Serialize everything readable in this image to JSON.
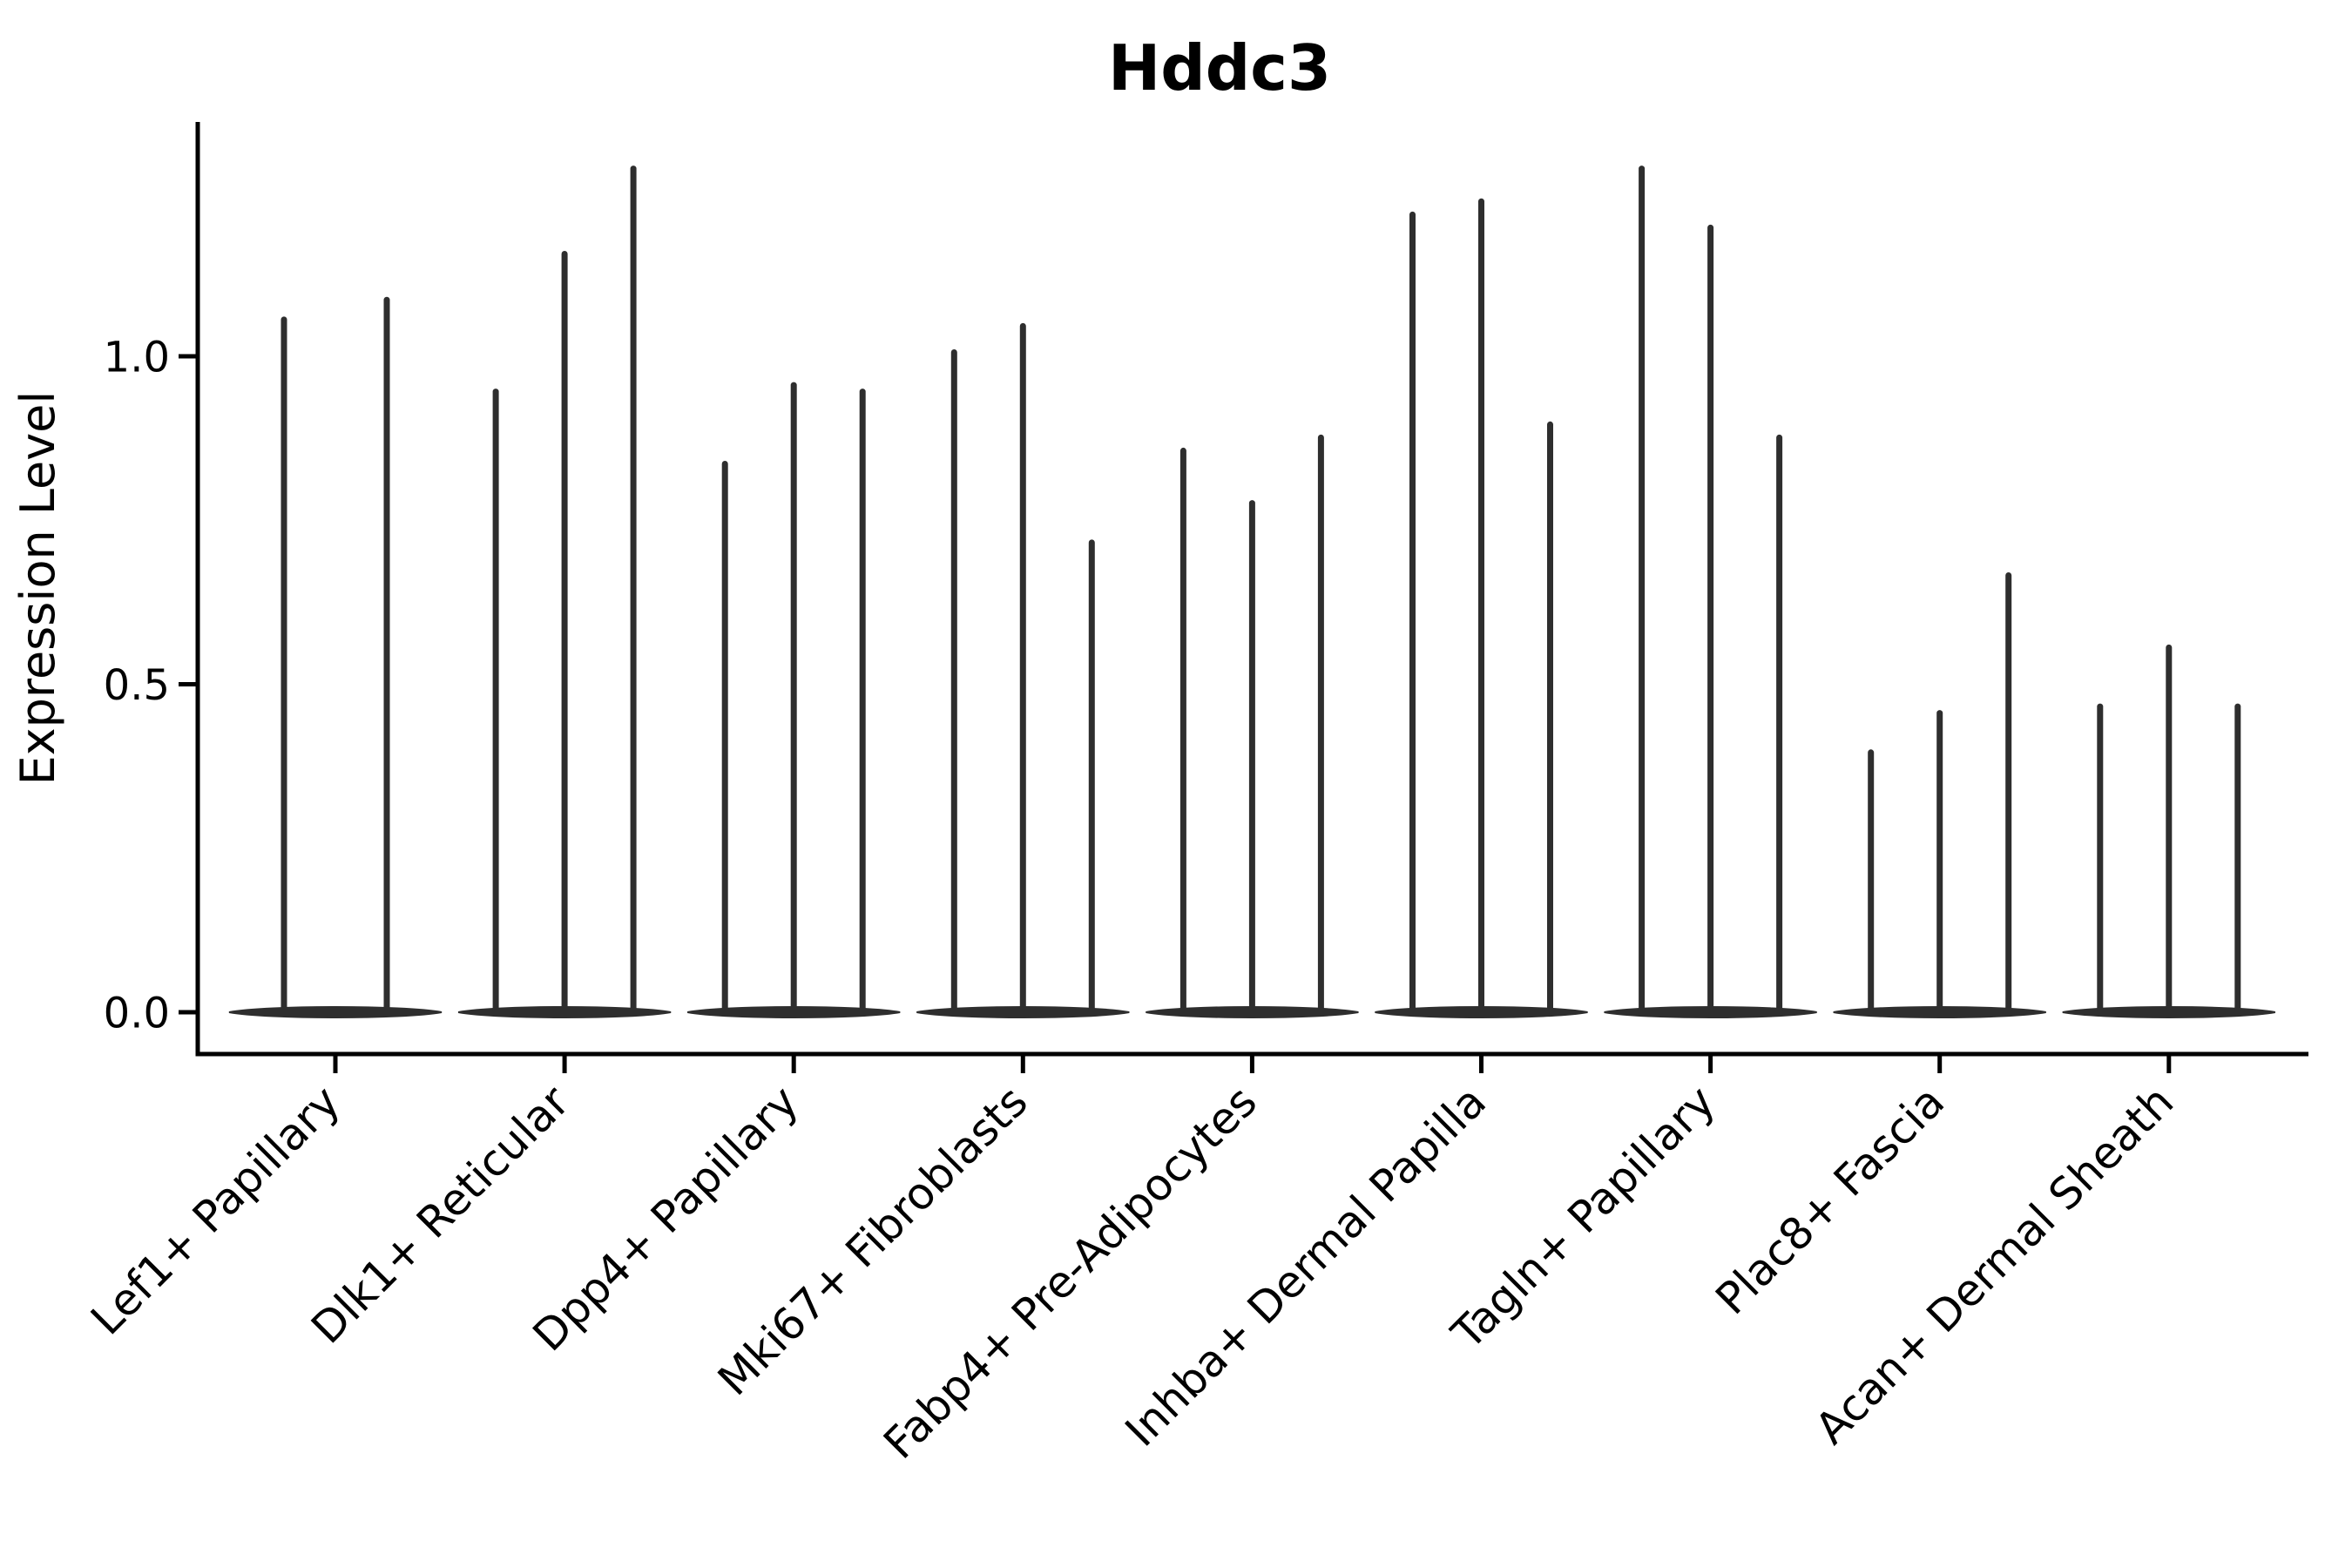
{
  "title": "Hddc3",
  "axes": {
    "ylabel": "Expression Level",
    "ytick_labels": [
      "0.0",
      "0.5",
      "1.0"
    ]
  },
  "colors": {
    "violin": "#2e2e2e",
    "axis": "#000000",
    "background": "#ffffff",
    "text": "#000000"
  },
  "chart_data": {
    "type": "violin",
    "title": "Hddc3",
    "xlabel": "",
    "ylabel": "Expression Level",
    "ylim": [
      -0.064,
      1.357
    ],
    "yticks": [
      0.0,
      0.5,
      1.0
    ],
    "ytick_labels": [
      "0.0",
      "0.5",
      "1.0"
    ],
    "grid": false,
    "legend": null,
    "x_tick_rotation_deg": 45,
    "categories": [
      "Lef1+ Papillary",
      "Dlk1+ Reticular",
      "Dpp4+ Papillary",
      "Mki67+ Fibroblasts",
      "Fabp4+ Pre-Adipocytes",
      "Inhba+ Dermal Papilla",
      "Tagln+ Papillary",
      "Plac8+ Fascia",
      "Acan+ Dermal Sheath"
    ],
    "series": [
      {
        "category": "Lef1+ Papillary",
        "violin_maxima": [
          1.06,
          1.09
        ]
      },
      {
        "category": "Dlk1+ Reticular",
        "violin_maxima": [
          0.95,
          1.16,
          1.29
        ]
      },
      {
        "category": "Dpp4+ Papillary",
        "violin_maxima": [
          0.84,
          0.96,
          0.95
        ]
      },
      {
        "category": "Mki67+ Fibroblasts",
        "violin_maxima": [
          1.01,
          1.05,
          0.72
        ]
      },
      {
        "category": "Fabp4+ Pre-Adipocytes",
        "violin_maxima": [
          0.86,
          0.78,
          0.88
        ]
      },
      {
        "category": "Inhba+ Dermal Papilla",
        "violin_maxima": [
          1.22,
          1.24,
          0.9
        ]
      },
      {
        "category": "Tagln+ Papillary",
        "violin_maxima": [
          1.29,
          1.2,
          0.88
        ]
      },
      {
        "category": "Plac8+ Fascia",
        "violin_maxima": [
          0.4,
          0.46,
          0.67
        ]
      },
      {
        "category": "Acan+ Dermal Sheath",
        "violin_maxima": [
          0.47,
          0.56,
          0.47
        ]
      }
    ],
    "note_violin_shape": "violins are near-zero width except a flat bulge at expression 0 and a thin spike up to the violin maximum"
  }
}
